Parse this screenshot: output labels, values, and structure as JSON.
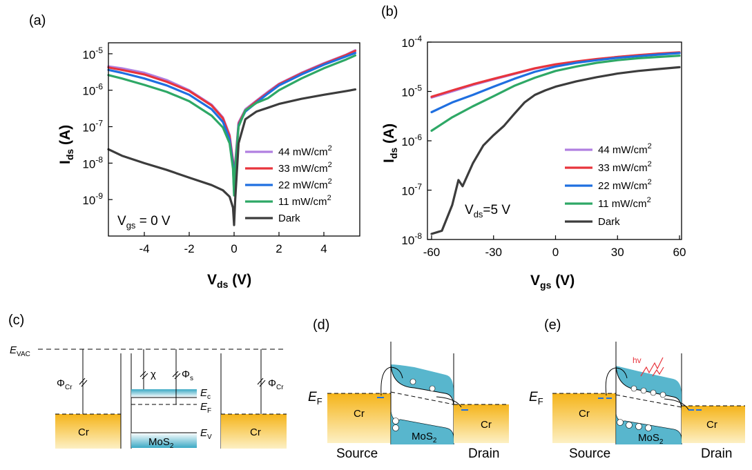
{
  "labels": {
    "a": "(a)",
    "b": "(b)",
    "c": "(c)",
    "d": "(d)",
    "e": "(e)"
  },
  "legend_unit": "mW/cm",
  "legend_sup": "2",
  "chart_data": [
    {
      "type": "line",
      "panel": "(a)",
      "xlabel": "V",
      "xlabel_sub": "ds",
      "xlabel_unit": " (V)",
      "ylabel": "I",
      "ylabel_sub": "ds",
      "ylabel_unit": " (A)",
      "xlim": [
        -5.6,
        5.6
      ],
      "ylim": [
        1e-10,
        2e-05
      ],
      "yscale": "log",
      "xticks": [
        -4,
        -2,
        0,
        2,
        4
      ],
      "xtick_labels": [
        "-4",
        "-2",
        "0",
        "2",
        "4"
      ],
      "yticks": [
        1e-09,
        1e-08,
        1e-07,
        1e-06,
        1e-05
      ],
      "ytick_exps": [
        "-9",
        "-8",
        "-7",
        "-6",
        "-5"
      ],
      "annotation": {
        "main": "V",
        "sub": "gs",
        "rest": " = 0 V"
      },
      "legend_position": "lower-right",
      "series": [
        {
          "name": "44 mW/cm2",
          "legend_value": "44",
          "color": "#b07fe0",
          "x": [
            -5.6,
            -5,
            -4,
            -3,
            -2,
            -1,
            -0.5,
            -0.2,
            -0.05,
            0,
            0.05,
            0.2,
            0.5,
            1,
            1.5,
            2,
            3,
            4,
            5,
            5.4
          ],
          "y": [
            4.5e-06,
            4e-06,
            3e-06,
            1.9e-06,
            1e-06,
            4e-07,
            1.8e-07,
            6e-08,
            1.2e-08,
            2e-09,
            1e-08,
            1.3e-07,
            3e-07,
            5.2e-07,
            9e-07,
            1.5e-06,
            3e-06,
            5.5e-06,
            9.5e-06,
            1.25e-05
          ]
        },
        {
          "name": "33 mW/cm2",
          "legend_value": "33",
          "color": "#e8343c",
          "x": [
            -5.6,
            -5,
            -4,
            -3,
            -2,
            -1,
            -0.5,
            -0.2,
            -0.05,
            0,
            0.05,
            0.2,
            0.5,
            1,
            1.5,
            2,
            3,
            4,
            5,
            5.4
          ],
          "y": [
            4.2e-06,
            3.6e-06,
            2.7e-06,
            1.7e-06,
            9.5e-07,
            3.8e-07,
            1.7e-07,
            5.5e-08,
            1.1e-08,
            1.8e-09,
            9e-09,
            1.2e-07,
            2.8e-07,
            5e-07,
            8.5e-07,
            1.45e-06,
            2.9e-06,
            5.3e-06,
            9.3e-06,
            1.2e-05
          ]
        },
        {
          "name": "22 mW/cm2",
          "legend_value": "22",
          "color": "#1f6fe0",
          "x": [
            -5.6,
            -5,
            -4,
            -3,
            -2,
            -1,
            -0.5,
            -0.2,
            -0.05,
            0,
            0.05,
            0.2,
            0.5,
            1,
            1.5,
            2,
            3,
            4,
            5,
            5.4
          ],
          "y": [
            3.6e-06,
            3e-06,
            2.1e-06,
            1.35e-06,
            7.5e-07,
            3e-07,
            1.35e-07,
            4.5e-08,
            9e-09,
            1.5e-09,
            8e-09,
            1.1e-07,
            2.6e-07,
            4.6e-07,
            8e-07,
            1.35e-06,
            2.7e-06,
            5e-06,
            8.5e-06,
            1.05e-05
          ]
        },
        {
          "name": "11 mW/cm2",
          "legend_value": "11",
          "color": "#2ea866",
          "x": [
            -5.6,
            -5,
            -4,
            -3,
            -2,
            -1,
            -0.5,
            -0.2,
            -0.05,
            0,
            0.05,
            0.2,
            0.5,
            1,
            1.5,
            2,
            3,
            4,
            5,
            5.4
          ],
          "y": [
            2.6e-06,
            2.1e-06,
            1.4e-06,
            9e-07,
            5e-07,
            2e-07,
            9.5e-08,
            3.5e-08,
            7e-09,
            1.3e-09,
            7e-09,
            1e-07,
            2.8e-07,
            4.5e-07,
            6e-07,
            1e-06,
            2.1e-06,
            4e-06,
            7e-06,
            9e-06
          ]
        },
        {
          "name": "Dark",
          "legend_value": "Dark",
          "color": "#3c3c3c",
          "x": [
            -5.6,
            -5,
            -4,
            -3,
            -2,
            -1,
            -0.5,
            -0.2,
            -0.05,
            0,
            0.05,
            0.2,
            0.5,
            1,
            1.5,
            2,
            3,
            4,
            5,
            5.4
          ],
          "y": [
            2.4e-08,
            1.6e-08,
            1e-08,
            6.5e-09,
            4e-09,
            2.5e-09,
            1.8e-09,
            1.2e-09,
            6e-10,
            2e-10,
            1e-09,
            3.5e-08,
            1.6e-07,
            2.6e-07,
            3.3e-07,
            4.2e-07,
            5.8e-07,
            7.5e-07,
            9.5e-07,
            1.05e-06
          ]
        }
      ]
    },
    {
      "type": "line",
      "panel": "(b)",
      "xlabel": "V",
      "xlabel_sub": "gs",
      "xlabel_unit": " (V)",
      "ylabel": "I",
      "ylabel_sub": "ds",
      "ylabel_unit": " (A)",
      "xlim": [
        -62,
        61
      ],
      "ylim": [
        1e-08,
        0.0001
      ],
      "yscale": "log",
      "xticks": [
        -60,
        -30,
        0,
        30,
        60
      ],
      "xtick_labels": [
        "-60",
        "-30",
        "0",
        "30",
        "60"
      ],
      "yticks": [
        1e-08,
        1e-07,
        1e-06,
        1e-05,
        0.0001
      ],
      "ytick_exps": [
        "-8",
        "-7",
        "-6",
        "-5",
        "-4"
      ],
      "annotation": {
        "main": "V",
        "sub": "ds",
        "rest": "=5 V"
      },
      "legend_position": "lower-right",
      "series": [
        {
          "name": "44 mW/cm2",
          "legend_value": "44",
          "color": "#b07fe0",
          "x": [
            -60,
            -50,
            -40,
            -30,
            -20,
            -10,
            0,
            10,
            20,
            30,
            40,
            50,
            60
          ],
          "y": [
            7.5e-06,
            1e-05,
            1.35e-05,
            1.75e-05,
            2.25e-05,
            2.9e-05,
            3.5e-05,
            4e-05,
            4.5e-05,
            5e-05,
            5.4e-05,
            5.8e-05,
            6e-05
          ]
        },
        {
          "name": "33 mW/cm2",
          "legend_value": "33",
          "color": "#e8343c",
          "x": [
            -60,
            -50,
            -40,
            -30,
            -20,
            -10,
            0,
            10,
            20,
            30,
            40,
            50,
            60
          ],
          "y": [
            7.8e-06,
            1.05e-05,
            1.4e-05,
            1.8e-05,
            2.3e-05,
            2.95e-05,
            3.55e-05,
            4.05e-05,
            4.55e-05,
            5e-05,
            5.45e-05,
            5.85e-05,
            6.2e-05
          ]
        },
        {
          "name": "22 mW/cm2",
          "legend_value": "22",
          "color": "#1f6fe0",
          "x": [
            -60,
            -50,
            -40,
            -30,
            -20,
            -10,
            0,
            10,
            20,
            30,
            40,
            50,
            60
          ],
          "y": [
            3.8e-06,
            6e-06,
            8.5e-06,
            1.25e-05,
            1.8e-05,
            2.5e-05,
            3.2e-05,
            3.8e-05,
            4.3e-05,
            4.8e-05,
            5.2e-05,
            5.6e-05,
            6e-05
          ]
        },
        {
          "name": "11 mW/cm2",
          "legend_value": "11",
          "color": "#2ea866",
          "x": [
            -60,
            -50,
            -40,
            -30,
            -20,
            -10,
            0,
            10,
            20,
            30,
            40,
            50,
            60
          ],
          "y": [
            1.6e-06,
            3e-06,
            5e-06,
            8e-06,
            1.3e-05,
            1.9e-05,
            2.6e-05,
            3.2e-05,
            3.8e-05,
            4.3e-05,
            4.7e-05,
            5e-05,
            5.3e-05
          ]
        },
        {
          "name": "Dark",
          "legend_value": "Dark",
          "color": "#3c3c3c",
          "x": [
            -60,
            -55,
            -50,
            -47,
            -45,
            -40,
            -35,
            -30,
            -25,
            -20,
            -15,
            -10,
            -5,
            0,
            10,
            20,
            30,
            40,
            50,
            60
          ],
          "y": [
            1.3e-08,
            1.5e-08,
            5e-08,
            1.6e-07,
            1.2e-07,
            3.5e-07,
            8e-07,
            1.3e-06,
            2e-06,
            3.5e-06,
            6e-06,
            8.5e-06,
            1.05e-05,
            1.25e-05,
            1.6e-05,
            1.95e-05,
            2.3e-05,
            2.6e-05,
            2.85e-05,
            3.1e-05
          ]
        }
      ]
    }
  ],
  "diagram_c": {
    "evac_main": "E",
    "evac_sub": "VAC",
    "phi": "Φ",
    "phi_cr_sub": "Cr",
    "phi_s_sub": "s",
    "chi": "χ",
    "ec_main": "E",
    "ec_sub": "c",
    "ef_main": "E",
    "ef_sub": "F",
    "ev_main": "E",
    "ev_sub": "V",
    "cr": "Cr",
    "mos2_main": "MoS",
    "mos2_sub": "2"
  },
  "diagram_d": {
    "ef_main": "E",
    "ef_sub": "F",
    "cr": "Cr",
    "mos2_main": "MoS",
    "mos2_sub": "2",
    "source": "Source",
    "drain": "Drain"
  },
  "diagram_e": {
    "hv": "hv",
    "ef_main": "E",
    "ef_sub": "F",
    "cr": "Cr",
    "mos2_main": "MoS",
    "mos2_sub": "2",
    "source": "Source",
    "drain": "Drain"
  }
}
